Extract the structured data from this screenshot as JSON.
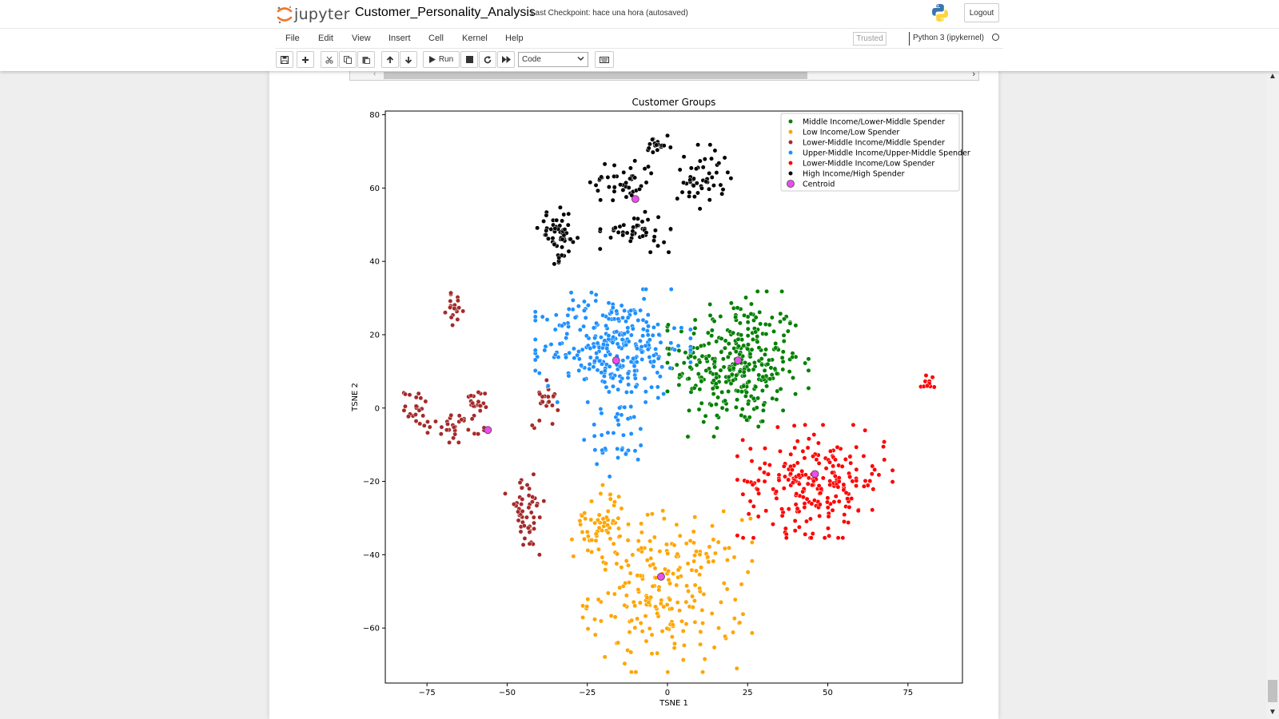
{
  "header": {
    "logo_text": "jupyter",
    "notebook_title": "Customer_Personality_Analysis",
    "checkpoint": "Last Checkpoint: hace una hora  (autosaved)",
    "logout_label": "Logout"
  },
  "menu": {
    "items": [
      {
        "id": "file",
        "label": "File"
      },
      {
        "id": "edit",
        "label": "Edit"
      },
      {
        "id": "view",
        "label": "View"
      },
      {
        "id": "insert",
        "label": "Insert"
      },
      {
        "id": "cell",
        "label": "Cell"
      },
      {
        "id": "kernel",
        "label": "Kernel"
      },
      {
        "id": "help",
        "label": "Help"
      }
    ],
    "trusted_label": "Trusted",
    "kernel_name": "Python 3 (ipykernel)"
  },
  "toolbar": {
    "run_label": "Run",
    "cell_type": "Code",
    "icons": [
      "save-icon",
      "plus-icon",
      "cut-icon",
      "copy-icon",
      "paste-icon",
      "arrow-up-icon",
      "arrow-down-icon",
      "run-icon",
      "stop-icon",
      "restart-icon",
      "fast-forward-icon",
      "keyboard-icon"
    ]
  },
  "chart_data": {
    "type": "scatter",
    "title": "Customer Groups",
    "xlabel": "TSNE 1",
    "ylabel": "TSNE 2",
    "xlim": [
      -88,
      92
    ],
    "ylim": [
      -75,
      81
    ],
    "xticks": [
      -75,
      -50,
      -25,
      0,
      25,
      50,
      75
    ],
    "yticks": [
      -60,
      -40,
      -20,
      0,
      20,
      40,
      60,
      80
    ],
    "xtick_labels": [
      "−75",
      "−50",
      "−25",
      "0",
      "25",
      "50",
      "75"
    ],
    "ytick_labels": [
      "−60",
      "−40",
      "−20",
      "0",
      "20",
      "40",
      "60",
      "80"
    ],
    "legend_position": "top-right",
    "series": [
      {
        "name": "Middle Income/Lower-Middle Spender",
        "color": "#008000",
        "clusters": [
          {
            "cx": 22,
            "cy": 12,
            "sx": 10,
            "sy": 9,
            "n": 330
          }
        ]
      },
      {
        "name": "Low Income/Low Spender",
        "color": "#ffa500",
        "clusters": [
          {
            "cx": 0,
            "cy": -50,
            "sx": 12,
            "sy": 10,
            "n": 230
          },
          {
            "cx": -21,
            "cy": -31,
            "sx": 4,
            "sy": 5,
            "n": 55
          }
        ]
      },
      {
        "name": "Lower-Middle Income/Middle Spender",
        "color": "#a52a2a",
        "clusters": [
          {
            "cx": -66,
            "cy": -5,
            "sx": 4,
            "sy": 2,
            "n": 30
          },
          {
            "cx": -78,
            "cy": 0,
            "sx": 2,
            "sy": 2.5,
            "n": 22
          },
          {
            "cx": -61,
            "cy": 0,
            "sx": 2,
            "sy": 2.5,
            "n": 20
          },
          {
            "cx": -44,
            "cy": -29,
            "sx": 3,
            "sy": 5,
            "n": 50
          },
          {
            "cx": -38,
            "cy": 3,
            "sx": 2,
            "sy": 4,
            "n": 25
          },
          {
            "cx": -66,
            "cy": 27,
            "sx": 1.5,
            "sy": 2,
            "n": 18
          }
        ]
      },
      {
        "name": "Upper-Middle Income/Upper-Middle Spender",
        "color": "#1e90ff",
        "clusters": [
          {
            "cx": -17,
            "cy": 17,
            "sx": 11,
            "sy": 7,
            "n": 300
          },
          {
            "cx": -15,
            "cy": -8,
            "sx": 5,
            "sy": 5,
            "n": 40
          }
        ]
      },
      {
        "name": "Lower-Middle Income/Low Spender",
        "color": "#ff0000",
        "clusters": [
          {
            "cx": 46,
            "cy": -20,
            "sx": 11,
            "sy": 7,
            "n": 230
          },
          {
            "cx": 81,
            "cy": 7,
            "sx": 1,
            "sy": 1,
            "n": 12
          }
        ]
      },
      {
        "name": "High Income/High Spender",
        "color": "#000000",
        "clusters": [
          {
            "cx": -34,
            "cy": 47,
            "sx": 3,
            "sy": 3.5,
            "n": 55
          },
          {
            "cx": -14,
            "cy": 62,
            "sx": 5,
            "sy": 3,
            "n": 45
          },
          {
            "cx": -10,
            "cy": 48,
            "sx": 5,
            "sy": 2.5,
            "n": 45
          },
          {
            "cx": 11,
            "cy": 63,
            "sx": 4,
            "sy": 4,
            "n": 50
          },
          {
            "cx": -3,
            "cy": 71,
            "sx": 2,
            "sy": 1.5,
            "n": 18
          }
        ]
      },
      {
        "name": "Centroid",
        "color": "#ee4bee",
        "points": [
          [
            -10,
            57
          ],
          [
            -16,
            13
          ],
          [
            22,
            13
          ],
          [
            -56,
            -6
          ],
          [
            46,
            -18
          ],
          [
            -2,
            -46
          ]
        ]
      }
    ]
  }
}
